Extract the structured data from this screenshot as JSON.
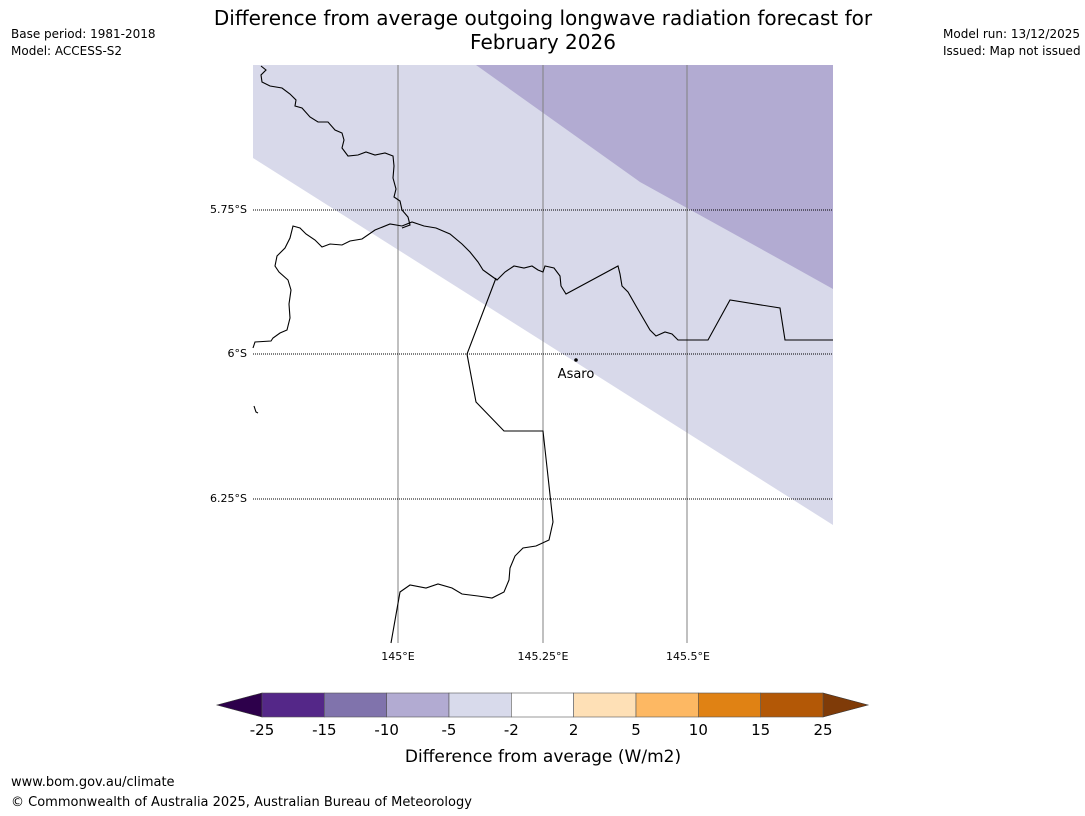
{
  "header": {
    "title_line1": "Difference from average outgoing longwave radiation forecast for",
    "title_line2": "February 2026",
    "base_period": "Base period: 1981-2018",
    "model": "Model: ACCESS-S2",
    "model_run": "Model run: 13/12/2025",
    "issued": "Issued: Map not issued"
  },
  "map": {
    "lat_labels": [
      "5.75°S",
      "6°S",
      "6.25°S"
    ],
    "lon_labels": [
      "145°E",
      "145.25°E",
      "145.5°E"
    ],
    "place_label": "Asaro",
    "regions": [
      {
        "name": "-10 to -5 W/m2 band",
        "color": "#b2abd2"
      },
      {
        "name": "-5 to -2 W/m2 band",
        "color": "#d8d9ea"
      },
      {
        "name": "-2 to 2 W/m2 band",
        "color": "#ffffff"
      }
    ]
  },
  "colorbar": {
    "ticks": [
      "-25",
      "-15",
      "-10",
      "-5",
      "-2",
      "2",
      "5",
      "10",
      "15",
      "25"
    ],
    "under_color": "#2d004b",
    "over_color": "#7f3b08",
    "colors": [
      "#542788",
      "#8073ac",
      "#b2abd2",
      "#d8daeb",
      "#ffffff",
      "#fee0b6",
      "#fdb863",
      "#e08214",
      "#b35806"
    ],
    "label": "Difference from average (W/m2)"
  },
  "footer": {
    "url": "www.bom.gov.au/climate",
    "copyright": "© Commonwealth of Australia 2025, Australian Bureau of Meteorology"
  }
}
